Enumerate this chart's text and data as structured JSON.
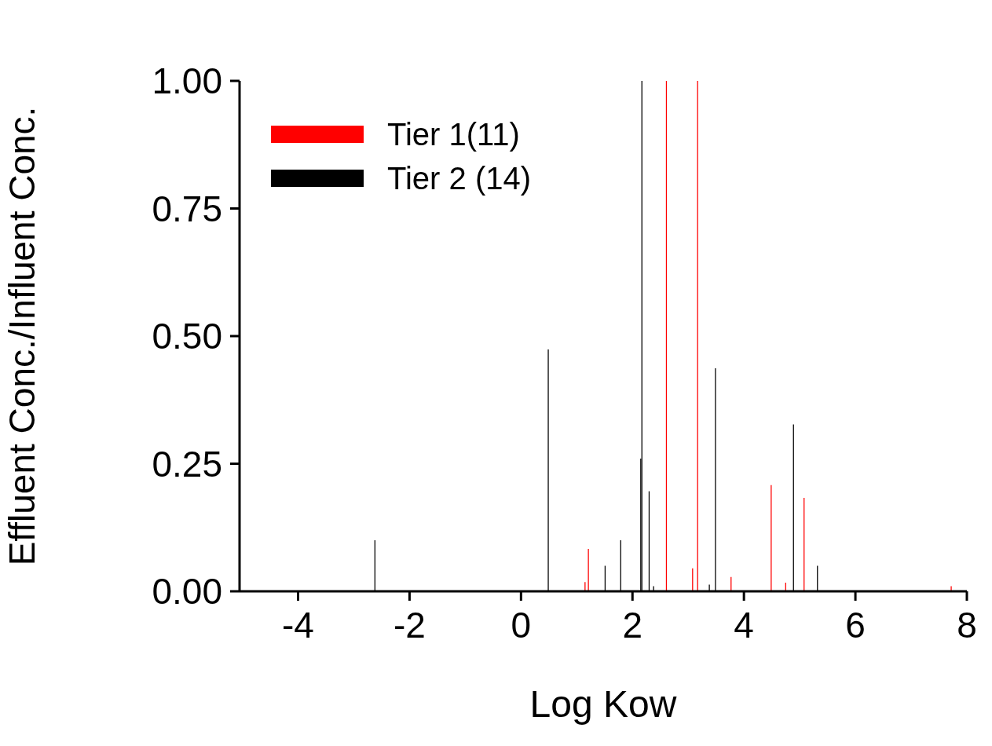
{
  "chart_data": {
    "type": "bar",
    "xlabel": "Log Kow",
    "ylabel": "Effluent Conc./Influent Conc.",
    "series": [
      {
        "name": "Tier 1(11)",
        "color": "#ff0000",
        "x": [
          1.15,
          1.21,
          2.61,
          3.08,
          3.17,
          3.77,
          4.49,
          4.75,
          5.08,
          7.72
        ],
        "values": [
          0.018,
          0.083,
          1.0,
          0.045,
          1.0,
          0.028,
          0.208,
          0.017,
          0.183,
          0.01
        ]
      },
      {
        "name": "Tier 2 (14)",
        "color": "#000000",
        "x": [
          -2.62,
          0.49,
          1.51,
          1.79,
          2.15,
          2.17,
          2.3,
          2.38,
          3.38,
          3.49,
          4.89,
          5.32
        ],
        "values": [
          0.1,
          0.474,
          0.05,
          0.1,
          0.26,
          1.0,
          0.196,
          0.01,
          0.013,
          0.437,
          0.327,
          0.05
        ]
      }
    ],
    "xlim": [
      -5.05,
      8
    ],
    "xticks": [
      -4,
      -2,
      0,
      2,
      4,
      6,
      8
    ],
    "ylim": [
      0,
      1
    ],
    "yticks": [
      {
        "value": 0,
        "label": "0.00"
      },
      {
        "value": 0.25,
        "label": "0.25"
      },
      {
        "value": 0.5,
        "label": "0.50"
      },
      {
        "value": 0.75,
        "label": "0.75"
      },
      {
        "value": 1,
        "label": "1.00"
      }
    ],
    "legend": "top left",
    "grid": false
  }
}
